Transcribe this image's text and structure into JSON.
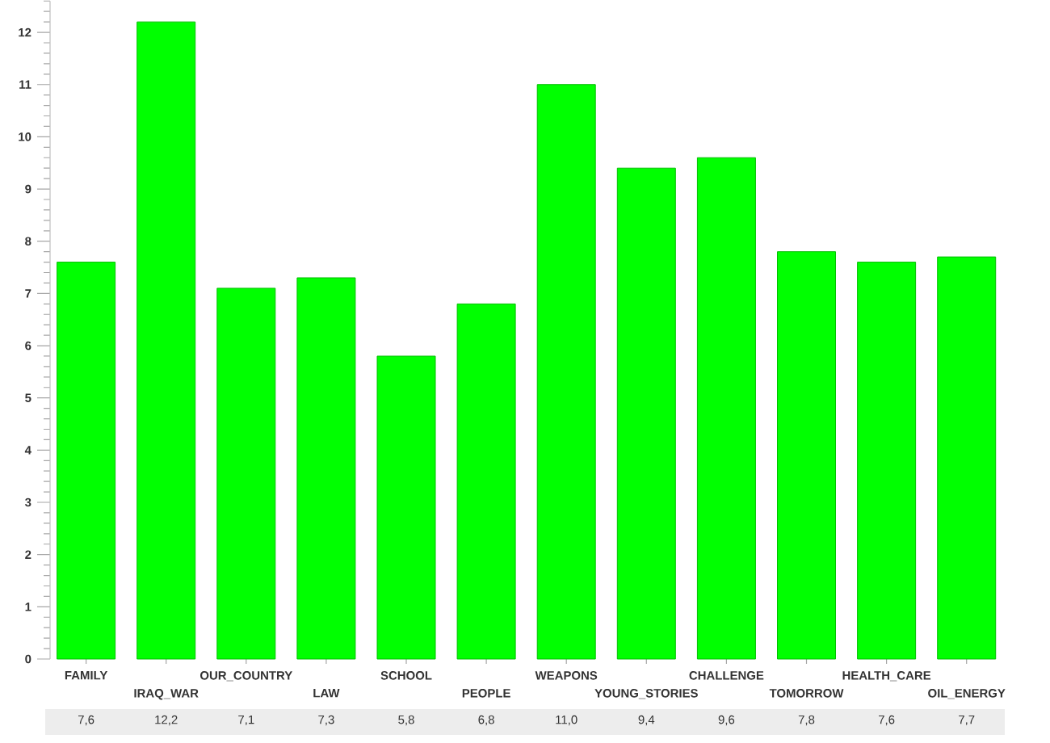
{
  "chart_data": {
    "type": "bar",
    "categories": [
      "FAMILY",
      "IRAQ_WAR",
      "OUR_COUNTRY",
      "LAW",
      "SCHOOL",
      "PEOPLE",
      "WEAPONS",
      "YOUNG_STORIES",
      "CHALLENGE",
      "TOMORROW",
      "HEALTH_CARE",
      "OIL_ENERGY"
    ],
    "values": [
      7.6,
      12.2,
      7.1,
      7.3,
      5.8,
      6.8,
      11.0,
      9.4,
      9.6,
      7.8,
      7.6,
      7.7
    ],
    "value_labels": [
      "7,6",
      "12,2",
      "7,1",
      "7,3",
      "5,8",
      "6,8",
      "11,0",
      "9,4",
      "9,6",
      "7,8",
      "7,6",
      "7,7"
    ],
    "color": "#00ff00",
    "ylim": [
      0,
      12.6
    ],
    "yticks": [
      0,
      {
        "value": 0.2,
        "label": null
      },
      {
        "value": 0.4,
        "label": null
      },
      {
        "value": 0.6,
        "label": null
      },
      {
        "value": 0.8,
        "label": null
      },
      1,
      {
        "value": 1.2,
        "label": null
      },
      {
        "value": 1.4,
        "label": null
      },
      {
        "value": 1.6,
        "label": null
      },
      {
        "value": 1.8,
        "label": null
      },
      2,
      {
        "value": 2.2,
        "label": null
      },
      {
        "value": 2.4,
        "label": null
      },
      {
        "value": 2.6,
        "label": null
      },
      {
        "value": 2.8,
        "label": null
      },
      3,
      {
        "value": 3.2,
        "label": null
      },
      {
        "value": 3.4,
        "label": null
      },
      {
        "value": 3.6,
        "label": null
      },
      {
        "value": 3.8,
        "label": null
      },
      4,
      {
        "value": 4.2,
        "label": null
      },
      {
        "value": 4.4,
        "label": null
      },
      {
        "value": 4.6,
        "label": null
      },
      {
        "value": 4.8,
        "label": null
      },
      5,
      {
        "value": 5.2,
        "label": null
      },
      {
        "value": 5.4,
        "label": null
      },
      {
        "value": 5.6,
        "label": null
      },
      {
        "value": 5.8,
        "label": null
      },
      6,
      {
        "value": 6.2,
        "label": null
      },
      {
        "value": 6.4,
        "label": null
      },
      {
        "value": 6.6,
        "label": null
      },
      {
        "value": 6.8,
        "label": null
      },
      7,
      {
        "value": 7.2,
        "label": null
      },
      {
        "value": 7.4,
        "label": null
      },
      {
        "value": 7.6,
        "label": null
      },
      {
        "value": 7.8,
        "label": null
      },
      8,
      {
        "value": 8.2,
        "label": null
      },
      {
        "value": 8.4,
        "label": null
      },
      {
        "value": 8.6,
        "label": null
      },
      {
        "value": 8.8,
        "label": null
      },
      9,
      {
        "value": 9.2,
        "label": null
      },
      {
        "value": 9.4,
        "label": null
      },
      {
        "value": 9.6,
        "label": null
      },
      {
        "value": 9.8,
        "label": null
      },
      10,
      {
        "value": 10.2,
        "label": null
      },
      {
        "value": 10.4,
        "label": null
      },
      {
        "value": 10.6,
        "label": null
      },
      {
        "value": 10.8,
        "label": null
      },
      11,
      {
        "value": 11.2,
        "label": null
      },
      {
        "value": 11.4,
        "label": null
      },
      {
        "value": 11.6,
        "label": null
      },
      {
        "value": 11.8,
        "label": null
      },
      12,
      {
        "value": 12.2,
        "label": null
      },
      {
        "value": 12.4,
        "label": null
      },
      {
        "value": 12.6,
        "label": null
      }
    ]
  }
}
